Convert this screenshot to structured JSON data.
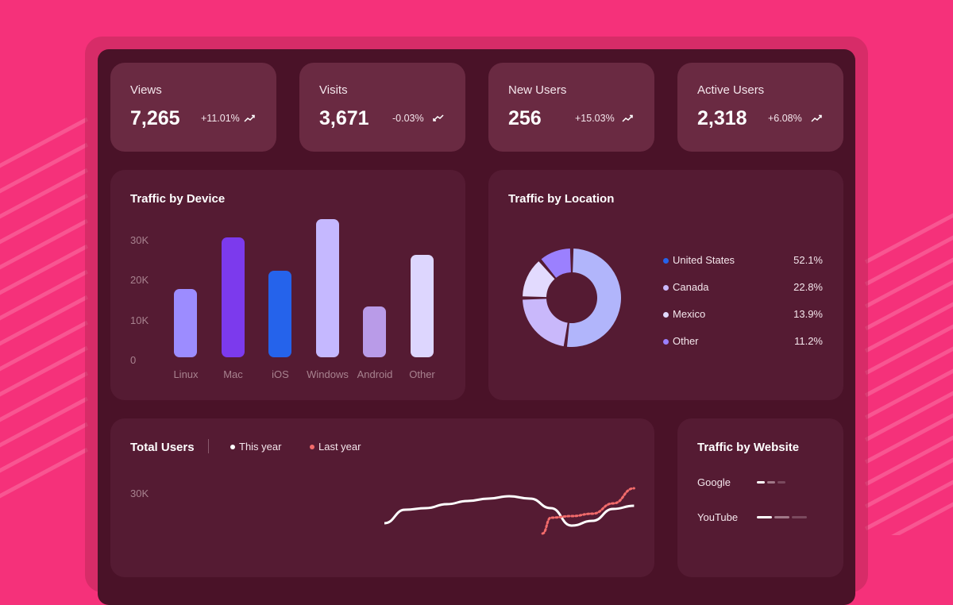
{
  "kpis": [
    {
      "label": "Views",
      "value": "7,265",
      "change": "+11.01%",
      "trend": "up"
    },
    {
      "label": "Visits",
      "value": "3,671",
      "change": "-0.03%",
      "trend": "down"
    },
    {
      "label": "New Users",
      "value": "256",
      "change": "+15.03%",
      "trend": "up"
    },
    {
      "label": "Active Users",
      "value": "2,318",
      "change": "+6.08%",
      "trend": "up"
    }
  ],
  "colors": {
    "background": "#f5317a",
    "panel": "#4a1228",
    "card": "#551b33",
    "kpi_card": "#6a2a42",
    "this_year": "#ffffff",
    "last_year": "#f26b6b"
  },
  "chart_data": [
    {
      "type": "bar",
      "title": "Traffic by Device",
      "categories": [
        "Linux",
        "Mac",
        "iOS",
        "Windows",
        "Android",
        "Other"
      ],
      "values": [
        17000,
        30000,
        21500,
        34500,
        12700,
        25500
      ],
      "colors": [
        "#9c8cff",
        "#7c3aed",
        "#2563eb",
        "#c5b8ff",
        "#b99be8",
        "#ddd6fe"
      ],
      "yticks": [
        "0",
        "10K",
        "20K",
        "30K"
      ],
      "ylim": [
        0,
        35000
      ]
    },
    {
      "type": "pie",
      "title": "Traffic by Location",
      "donut": true,
      "labels": [
        "United States",
        "Canada",
        "Mexico",
        "Other"
      ],
      "values": [
        52.1,
        22.8,
        13.9,
        11.2
      ],
      "display": [
        "52.1%",
        "22.8%",
        "13.9%",
        "11.2%"
      ],
      "colors": [
        "#b1b5fb",
        "#c9b8fb",
        "#e2dafe",
        "#9b80fe"
      ],
      "legend_colors": [
        "#2563eb",
        "#c9b8fb",
        "#e2dafe",
        "#9b80fe"
      ]
    },
    {
      "type": "line",
      "title": "Total Users",
      "yticks": [
        "30K"
      ],
      "series": [
        {
          "name": "This year",
          "color": "#ffffff",
          "x": [
            0,
            1,
            2,
            3,
            4,
            5,
            6,
            7,
            8,
            9,
            10,
            11,
            12
          ],
          "y": [
            22.6,
            26,
            26.4,
            27.4,
            28.2,
            28.8,
            29.4,
            28.8,
            26.4,
            22,
            23.2,
            26.2,
            27
          ]
        },
        {
          "name": "Last year",
          "color": "#f26b6b",
          "dashed": true,
          "x": [
            7.6,
            8,
            9,
            10,
            11,
            12
          ],
          "y": [
            20,
            24,
            24.4,
            25,
            27.6,
            31.4
          ]
        }
      ]
    }
  ],
  "websites": {
    "title": "Traffic by Website",
    "items": [
      {
        "name": "Google"
      },
      {
        "name": "YouTube"
      }
    ]
  }
}
